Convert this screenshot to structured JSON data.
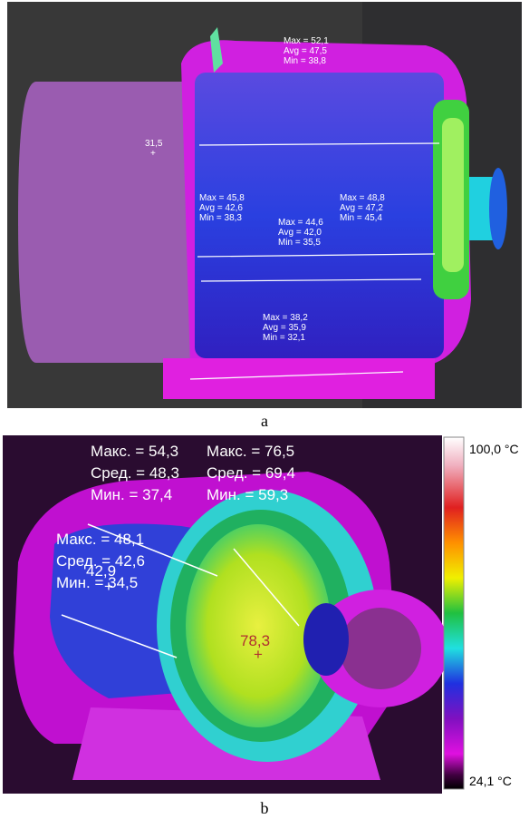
{
  "panel_a": {
    "caption": "a",
    "spot": "31,5",
    "groups": [
      [
        "Max = 52,1",
        "Avg = 47,5",
        "Min = 38,8"
      ],
      [
        "Max = 45,8",
        "Avg = 42,6",
        "Min = 38,3"
      ],
      [
        "Max = 48,8",
        "Avg = 47,2",
        "Min = 45,4"
      ],
      [
        "Max = 44,6",
        "Avg = 42,0",
        "Min = 35,5"
      ],
      [
        "Max = 38,2",
        "Avg = 35,9",
        "Min = 32,1"
      ]
    ]
  },
  "panel_b": {
    "caption": "b",
    "spots": [
      "42,9",
      "78,3"
    ],
    "scale_max": "100,0 °C",
    "scale_min": "24,1 °C",
    "groups": [
      [
        "Макс. = 54,3",
        "Сред. = 48,3",
        "Мин. = 37,4"
      ],
      [
        "Макс. = 76,5",
        "Сред. = 69,4",
        "Мин. = 59,3"
      ],
      [
        "Макс. = 48,1",
        "Сред. = 42,6",
        "Мин. = 34,5"
      ]
    ]
  }
}
